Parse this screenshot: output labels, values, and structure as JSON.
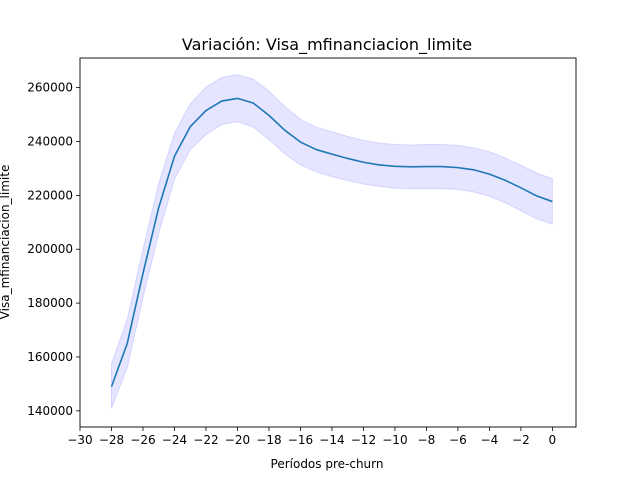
{
  "chart_data": {
    "type": "line",
    "title": "Variación: Visa_mfinanciacion_limite",
    "xlabel": "Períodos pre-churn",
    "ylabel": "Visa_mfinanciacion_limite",
    "xlim": [
      -30,
      1.5
    ],
    "ylim": [
      134000,
      271000
    ],
    "xticks": [
      -30,
      -28,
      -26,
      -24,
      -22,
      -20,
      -18,
      -16,
      -14,
      -12,
      -10,
      -8,
      -6,
      -4,
      -2,
      0
    ],
    "xtick_labels": [
      "−30",
      "−28",
      "−26",
      "−24",
      "−22",
      "−20",
      "−18",
      "−16",
      "−14",
      "−12",
      "−10",
      "−8",
      "−6",
      "−4",
      "−2",
      "0"
    ],
    "yticks": [
      140000,
      160000,
      180000,
      200000,
      220000,
      240000,
      260000
    ],
    "ytick_labels": [
      "140000",
      "160000",
      "180000",
      "200000",
      "220000",
      "240000",
      "260000"
    ],
    "grid": false,
    "line_color": "#1f77b4",
    "band_color": "#0000ff",
    "series": [
      {
        "x": [
          -28,
          -27,
          -26,
          -25,
          -24,
          -23,
          -22,
          -21,
          -20,
          -19,
          -18,
          -17,
          -16,
          -15,
          -14,
          -13,
          -12,
          -11,
          -10,
          -9,
          -8,
          -7,
          -6,
          -5,
          -4,
          -3,
          -2,
          -1,
          0
        ],
        "y": [
          149000,
          165000,
          191000,
          215500,
          234500,
          245500,
          251500,
          255000,
          256000,
          254300,
          249700,
          244200,
          239800,
          237000,
          235300,
          233700,
          232300,
          231300,
          230800,
          230600,
          230700,
          230700,
          230300,
          229500,
          227900,
          225600,
          222800,
          219800,
          217700
        ],
        "lower": [
          141000,
          156000,
          182000,
          206000,
          226000,
          237000,
          242500,
          246300,
          247300,
          245400,
          240700,
          235500,
          231300,
          228700,
          227000,
          225500,
          224200,
          223300,
          222700,
          222500,
          222500,
          222500,
          222200,
          221300,
          219600,
          217300,
          214300,
          211300,
          209300
        ],
        "upper": [
          157500,
          174000,
          200000,
          224500,
          243000,
          254000,
          260200,
          263800,
          264800,
          263200,
          258700,
          253000,
          248300,
          245300,
          243600,
          241900,
          240400,
          239400,
          238900,
          238700,
          238900,
          238900,
          238500,
          237700,
          236200,
          233900,
          231200,
          228300,
          226200
        ]
      }
    ]
  }
}
